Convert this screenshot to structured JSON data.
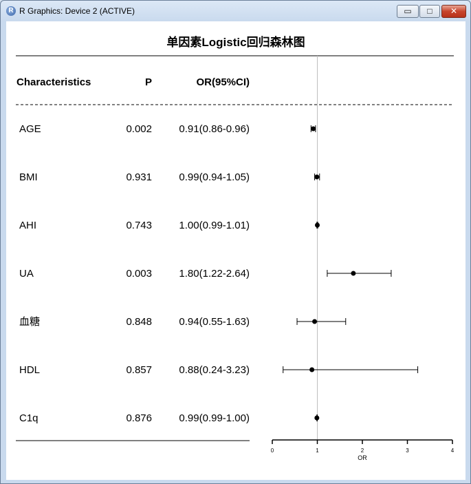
{
  "window": {
    "title": "R Graphics: Device 2 (ACTIVE)",
    "app_icon": "R",
    "controls": {
      "minimize": "▭",
      "maximize": "□",
      "close": "✕"
    }
  },
  "chart_data": {
    "type": "forest",
    "title": "单因素Logistic回归森林图",
    "columns": [
      "Characteristics",
      "P",
      "OR(95%CI)"
    ],
    "rows": [
      {
        "name": "AGE",
        "p": "0.002",
        "or_ci": "0.91(0.86-0.96)",
        "or": 0.91,
        "lo": 0.86,
        "hi": 0.96
      },
      {
        "name": "BMI",
        "p": "0.931",
        "or_ci": "0.99(0.94-1.05)",
        "or": 0.99,
        "lo": 0.94,
        "hi": 1.05
      },
      {
        "name": "AHI",
        "p": "0.743",
        "or_ci": "1.00(0.99-1.01)",
        "or": 1.0,
        "lo": 0.99,
        "hi": 1.01
      },
      {
        "name": "UA",
        "p": "0.003",
        "or_ci": "1.80(1.22-2.64)",
        "or": 1.8,
        "lo": 1.22,
        "hi": 2.64
      },
      {
        "name": "血糖",
        "p": "0.848",
        "or_ci": "0.94(0.55-1.63)",
        "or": 0.94,
        "lo": 0.55,
        "hi": 1.63
      },
      {
        "name": "HDL",
        "p": "0.857",
        "or_ci": "0.88(0.24-3.23)",
        "or": 0.88,
        "lo": 0.24,
        "hi": 3.23
      },
      {
        "name": "C1q",
        "p": "0.876",
        "or_ci": "0.99(0.99-1.00)",
        "or": 0.99,
        "lo": 0.99,
        "hi": 1.0
      }
    ],
    "reference_line": 1,
    "xlim": [
      0,
      4
    ],
    "xticks": [
      "0",
      "1",
      "2",
      "3",
      "4"
    ],
    "xlabel": "OR"
  }
}
